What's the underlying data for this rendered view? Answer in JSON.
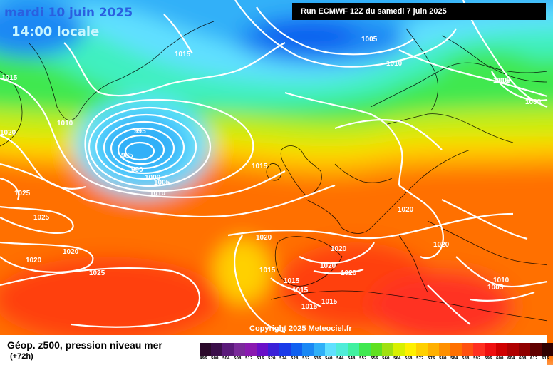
{
  "header": {
    "date": "mardi 10 juin 2025",
    "time": "14:00 locale",
    "run": "Run ECMWF 12Z du samedi 7 juin 2025"
  },
  "copyright": "Copyright 2025 Meteociel.fr",
  "footer": {
    "title": "Géop. z500, pression niveau mer",
    "subtitle": "(+72h)"
  },
  "scale": [
    {
      "v": "496",
      "c": "#2b0a2b"
    },
    {
      "v": "500",
      "c": "#3b0f4a"
    },
    {
      "v": "504",
      "c": "#5a1a7a"
    },
    {
      "v": "508",
      "c": "#7a2a9a"
    },
    {
      "v": "512",
      "c": "#8a1ab0"
    },
    {
      "v": "516",
      "c": "#6a10c8"
    },
    {
      "v": "520",
      "c": "#3a20d8"
    },
    {
      "v": "524",
      "c": "#1a3ae8"
    },
    {
      "v": "528",
      "c": "#1060f0"
    },
    {
      "v": "532",
      "c": "#1a88f4"
    },
    {
      "v": "536",
      "c": "#30b0f8"
    },
    {
      "v": "540",
      "c": "#60e0ff"
    },
    {
      "v": "544",
      "c": "#50ecd8"
    },
    {
      "v": "548",
      "c": "#40f0a0"
    },
    {
      "v": "552",
      "c": "#40e850"
    },
    {
      "v": "556",
      "c": "#60e020"
    },
    {
      "v": "560",
      "c": "#a0e010"
    },
    {
      "v": "564",
      "c": "#d8f000"
    },
    {
      "v": "568",
      "c": "#fff000"
    },
    {
      "v": "572",
      "c": "#ffd000"
    },
    {
      "v": "576",
      "c": "#ffb000"
    },
    {
      "v": "580",
      "c": "#ff9000"
    },
    {
      "v": "584",
      "c": "#ff7000"
    },
    {
      "v": "588",
      "c": "#ff5010"
    },
    {
      "v": "592",
      "c": "#ff3020"
    },
    {
      "v": "596",
      "c": "#f01010"
    },
    {
      "v": "600",
      "c": "#d00000"
    },
    {
      "v": "604",
      "c": "#b00000"
    },
    {
      "v": "608",
      "c": "#900000"
    },
    {
      "v": "612",
      "c": "#600000"
    },
    {
      "v": "616",
      "c": "#300000"
    }
  ],
  "isobar_labels": [
    "1015",
    "1015",
    "1005",
    "1010",
    "1015",
    "1010",
    "1005",
    "1000",
    "995",
    "985",
    "990",
    "1000",
    "1005",
    "1010",
    "1020",
    "1025",
    "1025",
    "1015",
    "1020",
    "1020",
    "1020",
    "1020",
    "1025",
    "1020",
    "1020",
    "1020",
    "1015",
    "1015",
    "1015",
    "1015",
    "1015",
    "1020",
    "1010",
    "1005"
  ]
}
